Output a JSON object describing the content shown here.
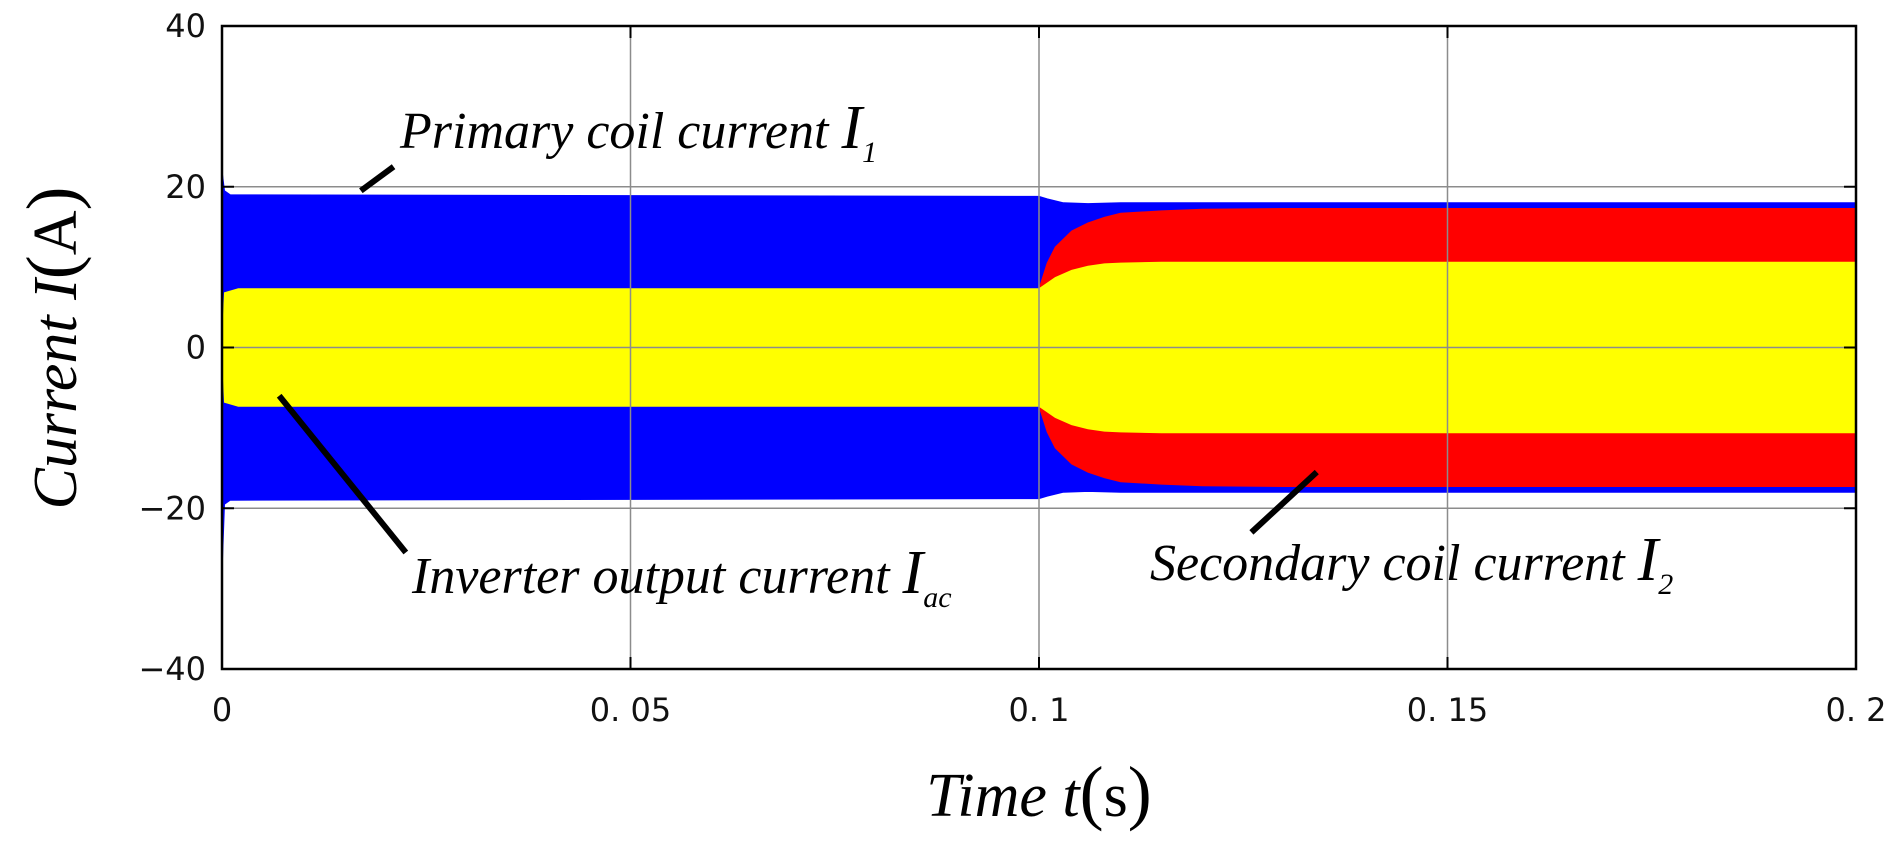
{
  "chart_data": {
    "type": "area",
    "title": "",
    "xlabel": {
      "quantity": "Time",
      "symbol": "t",
      "unit": "s"
    },
    "ylabel": {
      "quantity": "Current",
      "symbol": "I",
      "unit": "A"
    },
    "xlim": [
      0,
      0.2
    ],
    "ylim": [
      -40,
      40
    ],
    "x_tick_values": [
      0,
      0.05,
      0.1,
      0.15,
      0.2
    ],
    "x_tick_labels": [
      "0",
      "0. 05",
      "0. 1",
      "0. 15",
      "0. 2"
    ],
    "y_tick_values": [
      40,
      20,
      0,
      -20,
      -40
    ],
    "y_tick_labels": [
      "40",
      "20",
      "0",
      "−20",
      "−40"
    ],
    "grid": true,
    "series": [
      {
        "name": "Primary coil current I1",
        "color": "#0000ff",
        "envelope": {
          "x": [
            0,
            0.0003,
            0.001,
            0.1,
            0.101,
            0.103,
            0.106,
            0.11,
            0.2
          ],
          "upper": [
            22,
            19.5,
            19,
            18.8,
            18.5,
            18.0,
            17.9,
            18.0,
            18.0
          ],
          "lower": [
            -28,
            -19.5,
            -19,
            -18.8,
            -18.5,
            -18.0,
            -17.9,
            -18.0,
            -18.0
          ]
        }
      },
      {
        "name": "Secondary coil current I2",
        "color": "#ff0000",
        "envelope": {
          "x": [
            0.1,
            0.101,
            0.102,
            0.104,
            0.106,
            0.108,
            0.11,
            0.115,
            0.12,
            0.13,
            0.2
          ],
          "upper": [
            7.3,
            10.5,
            12.5,
            14.5,
            15.5,
            16.2,
            16.7,
            17.0,
            17.2,
            17.3,
            17.3
          ],
          "lower": [
            -7.3,
            -10.5,
            -12.5,
            -14.5,
            -15.5,
            -16.2,
            -16.7,
            -17.0,
            -17.2,
            -17.3,
            -17.3
          ]
        }
      },
      {
        "name": "Inverter output current Iac",
        "color": "#ffff00",
        "envelope": {
          "x": [
            0,
            0.0003,
            0.002,
            0.1,
            0.101,
            0.102,
            0.104,
            0.106,
            0.108,
            0.11,
            0.115,
            0.2
          ],
          "upper": [
            0,
            6.8,
            7.3,
            7.3,
            8.0,
            8.7,
            9.6,
            10.1,
            10.4,
            10.5,
            10.6,
            10.6
          ],
          "lower": [
            0,
            -6.8,
            -7.3,
            -7.3,
            -8.0,
            -8.7,
            -9.6,
            -10.1,
            -10.4,
            -10.5,
            -10.6,
            -10.6
          ]
        }
      }
    ],
    "annotations": [
      {
        "text": "Primary coil current ",
        "symbol": "I",
        "subscript": "1",
        "arrow_from": [
          0.021,
          22.5
        ],
        "arrow_to": [
          0.017,
          19.5
        ]
      },
      {
        "text": "Inverter output current ",
        "symbol": "I",
        "subscript": "ac",
        "arrow_from": [
          0.0225,
          -25.5
        ],
        "arrow_to": [
          0.007,
          -6.0
        ]
      },
      {
        "text": "Secondary coil current ",
        "symbol": "I",
        "subscript": "2",
        "arrow_from": [
          0.126,
          -23.0
        ],
        "arrow_to": [
          0.134,
          -15.5
        ]
      }
    ]
  }
}
